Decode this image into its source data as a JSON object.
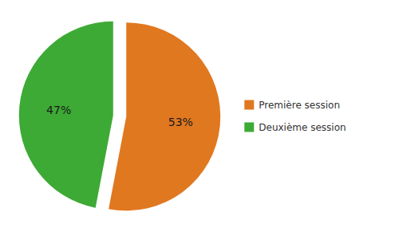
{
  "chart_data": {
    "type": "pie",
    "categories": [
      "Première session",
      "Deuxième session"
    ],
    "values": [
      53,
      47
    ],
    "value_labels": [
      "53%",
      "47%"
    ],
    "colors": [
      "#E07820",
      "#3DAA35"
    ],
    "data_labels": true,
    "legend": "right"
  }
}
